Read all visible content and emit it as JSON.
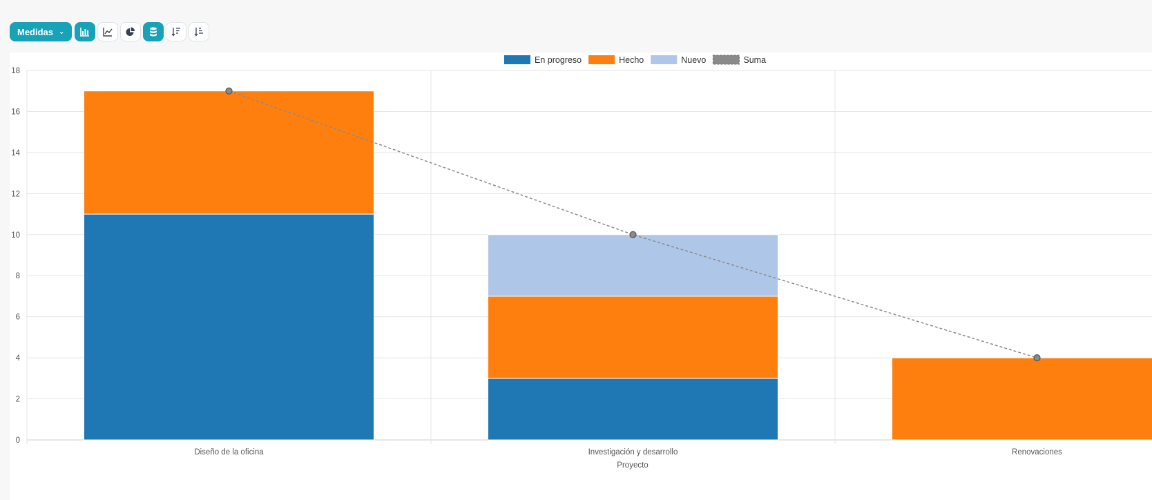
{
  "toolbar": {
    "measures_label": "Medidas",
    "buttons": [
      {
        "icon": "bar-chart-icon",
        "active": true
      },
      {
        "icon": "line-chart-icon",
        "active": false
      },
      {
        "icon": "pie-chart-icon",
        "active": false
      },
      {
        "icon": "stacked-database-icon",
        "active": true
      },
      {
        "icon": "sort-descending-icon",
        "active": false
      },
      {
        "icon": "sort-ascending-icon",
        "active": false
      }
    ]
  },
  "chart_data": {
    "type": "bar",
    "stacked": true,
    "xlabel": "Proyecto",
    "ylabel": "",
    "ylim": [
      0,
      18
    ],
    "yticks": [
      0,
      2,
      4,
      6,
      8,
      10,
      12,
      14,
      16,
      18
    ],
    "categories": [
      "Diseño de la oficina",
      "Investigación y desarrollo",
      "Renovaciones"
    ],
    "series": [
      {
        "name": "En progreso",
        "values": [
          11,
          3,
          0
        ],
        "color": "#1f77b4"
      },
      {
        "name": "Hecho",
        "values": [
          6,
          4,
          4
        ],
        "color": "#ff7f0e"
      },
      {
        "name": "Nuevo",
        "values": [
          0,
          3,
          0
        ],
        "color": "#aec7e8"
      }
    ],
    "line_series": {
      "name": "Suma",
      "values": [
        17,
        10,
        4
      ],
      "color": "#8a8a8a",
      "style": "dashed"
    },
    "grid": true,
    "legend_position": "top-center"
  }
}
